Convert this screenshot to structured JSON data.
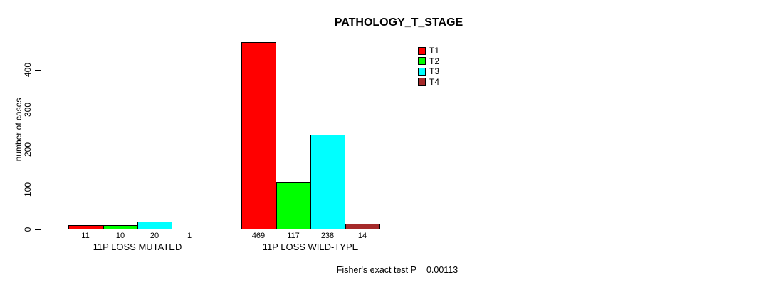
{
  "title": "PATHOLOGY_T_STAGE",
  "chart_data": {
    "type": "bar",
    "title": "PATHOLOGY_T_STAGE",
    "xlabel": "",
    "ylabel": "number of cases",
    "categories": [
      "11P LOSS MUTATED",
      "11P LOSS WILD-TYPE"
    ],
    "series": [
      {
        "name": "T1",
        "color": "#ff0000",
        "values": [
          11,
          469
        ]
      },
      {
        "name": "T2",
        "color": "#00ff00",
        "values": [
          10,
          117
        ]
      },
      {
        "name": "T3",
        "color": "#00ffff",
        "values": [
          20,
          238
        ]
      },
      {
        "name": "T4",
        "color": "#a52a2a",
        "values": [
          1,
          14
        ]
      }
    ],
    "bar_value_labels": {
      "11P LOSS MUTATED": [
        11,
        10,
        20,
        1
      ],
      "11P LOSS WILD-TYPE": [
        469,
        117,
        238,
        14
      ]
    },
    "yticks": [
      0,
      100,
      200,
      300,
      400
    ],
    "ylim": [
      0,
      476
    ],
    "grid": false,
    "legend_position": "top-right",
    "annotation": "Fisher's exact test P = 0.00113"
  }
}
